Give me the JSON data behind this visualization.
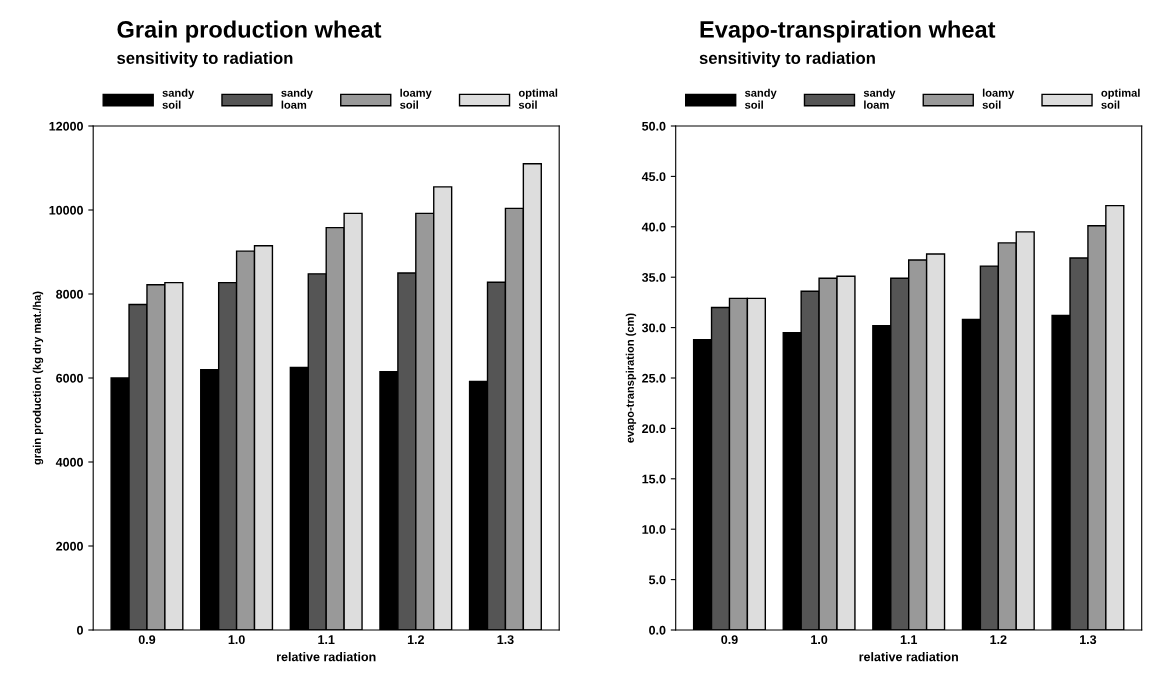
{
  "chart_data": [
    {
      "type": "bar",
      "title": "Grain production wheat",
      "subtitle": "sensitivity to radiation",
      "xlabel": "relative radiation",
      "ylabel": "grain production (kg dry mat./ha)",
      "categories": [
        "0.9",
        "1.0",
        "1.1",
        "1.2",
        "1.3"
      ],
      "series": [
        {
          "name": "sandy\nsoil",
          "color": "#000000",
          "values": [
            6000,
            6200,
            6250,
            6150,
            5920
          ]
        },
        {
          "name": "sandy\nloam",
          "color": "#555555",
          "values": [
            7750,
            8270,
            8480,
            8500,
            8280
          ]
        },
        {
          "name": "loamy\nsoil",
          "color": "#999999",
          "values": [
            8220,
            9020,
            9580,
            9920,
            10040
          ]
        },
        {
          "name": "optimal\nsoil",
          "color": "#dddddd",
          "values": [
            8270,
            9150,
            9920,
            10550,
            11100
          ]
        }
      ],
      "ylim": [
        0,
        12000
      ],
      "yticks": [
        0,
        2000,
        4000,
        6000,
        8000,
        10000,
        12000
      ],
      "legend": "top",
      "grid": false
    },
    {
      "type": "bar",
      "title": "Evapo-transpiration wheat",
      "subtitle": "sensitivity to radiation",
      "xlabel": "relative radiation",
      "ylabel": "evapo-transpiration (cm)",
      "categories": [
        "0.9",
        "1.0",
        "1.1",
        "1.2",
        "1.3"
      ],
      "series": [
        {
          "name": "sandy\nsoil",
          "color": "#000000",
          "values": [
            28.8,
            29.5,
            30.2,
            30.8,
            31.2
          ]
        },
        {
          "name": "sandy\nloam",
          "color": "#555555",
          "values": [
            32.0,
            33.6,
            34.9,
            36.1,
            36.9
          ]
        },
        {
          "name": "loamy\nsoil",
          "color": "#999999",
          "values": [
            32.9,
            34.9,
            36.7,
            38.4,
            40.1
          ]
        },
        {
          "name": "optimal\nsoil",
          "color": "#dddddd",
          "values": [
            32.9,
            35.1,
            37.3,
            39.5,
            42.1
          ]
        }
      ],
      "ylim": [
        0,
        50
      ],
      "yticks": [
        {
          "value": 0,
          "label": "0.0"
        },
        {
          "value": 5,
          "label": "5.0"
        },
        {
          "value": 10,
          "label": "10.0"
        },
        {
          "value": 15,
          "label": "15.0"
        },
        {
          "value": 20,
          "label": "20.0"
        },
        {
          "value": 25,
          "label": "25.0"
        },
        {
          "value": 30,
          "label": "30.0"
        },
        {
          "value": 35,
          "label": "35.0"
        },
        {
          "value": 40,
          "label": "40.0"
        },
        {
          "value": 45,
          "label": "45.0"
        },
        {
          "value": 50,
          "label": "50.0"
        }
      ],
      "legend": "top",
      "grid": false
    }
  ]
}
